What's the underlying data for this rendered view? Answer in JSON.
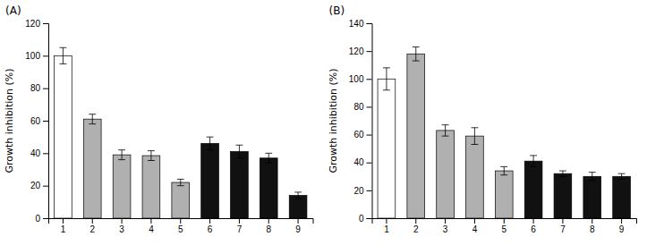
{
  "chart_data": [
    {
      "type": "bar",
      "title": "(A)",
      "ylabel": "Growth inhibition (%)",
      "categories": [
        "1",
        "2",
        "3",
        "4",
        "5",
        "6",
        "7",
        "8",
        "9"
      ],
      "values": [
        100,
        61,
        39,
        38.5,
        22,
        46,
        41,
        37,
        14
      ],
      "errors": [
        5,
        3,
        3,
        3,
        2,
        4,
        4,
        3,
        2
      ],
      "colors": [
        "white",
        "#b0b0b0",
        "#b0b0b0",
        "#b0b0b0",
        "#b0b0b0",
        "#111111",
        "#111111",
        "#111111",
        "#111111"
      ],
      "ylim": [
        0,
        120
      ],
      "yticks": [
        0,
        20,
        40,
        60,
        80,
        100,
        120
      ],
      "grid": false
    },
    {
      "type": "bar",
      "title": "(B)",
      "ylabel": "Growth inhibition (%)",
      "categories": [
        "1",
        "2",
        "3",
        "4",
        "5",
        "6",
        "7",
        "8",
        "9"
      ],
      "values": [
        100,
        118,
        63,
        59,
        34,
        41,
        32,
        30,
        30
      ],
      "errors": [
        8,
        5,
        4,
        6,
        3,
        4,
        2,
        3,
        2
      ],
      "colors": [
        "white",
        "#b0b0b0",
        "#b0b0b0",
        "#b0b0b0",
        "#b0b0b0",
        "#111111",
        "#111111",
        "#111111",
        "#111111"
      ],
      "ylim": [
        0,
        140
      ],
      "yticks": [
        0,
        20,
        40,
        60,
        80,
        100,
        120,
        140
      ],
      "grid": false
    }
  ]
}
